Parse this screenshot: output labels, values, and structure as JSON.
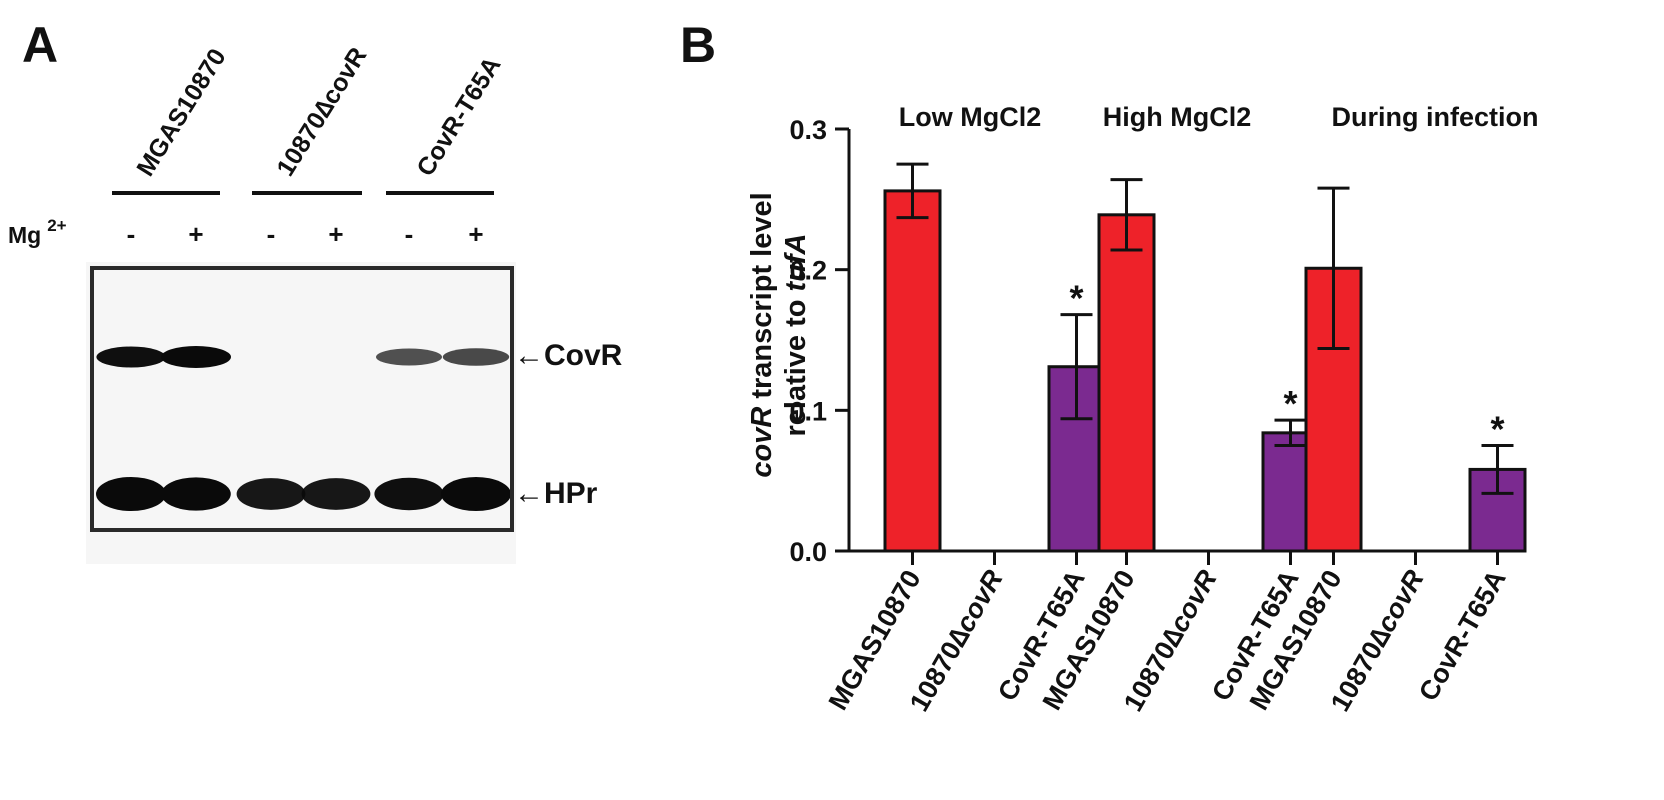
{
  "panel_a": {
    "letter": "A",
    "lanes": [
      {
        "label": "MGAS10870"
      },
      {
        "label": "10870∆covR"
      },
      {
        "label": "CovR-T65A"
      }
    ],
    "mg_label": "Mg",
    "mg_superscript": "2+",
    "signs": [
      "-",
      "+",
      "-",
      "+",
      "-",
      "+"
    ],
    "bands": [
      {
        "label": "←CovR",
        "intensity": [
          0.9,
          1.0,
          0.0,
          0.0,
          0.5,
          0.55
        ]
      },
      {
        "label": "←HPr",
        "intensity": [
          1.0,
          0.95,
          0.85,
          0.85,
          0.9,
          1.0
        ]
      }
    ],
    "colors": {
      "band": "#0a0a0a",
      "blot_background": "#f7f7f7",
      "frame": "#2a2a2a"
    }
  },
  "chart_data": {
    "type": "bar",
    "panel_letter": "B",
    "ylabel": {
      "italic_part": "covR",
      "line1_rest": " transcript level",
      "line2_plain": "relative to ",
      "line2_italic": "tufA"
    },
    "ylim": [
      0.0,
      0.3
    ],
    "yticks": [
      0.0,
      0.1,
      0.2,
      0.3
    ],
    "ytick_labels": [
      "0.0",
      "0.1",
      "0.2",
      "0.3"
    ],
    "grid": false,
    "conditions": [
      {
        "label": "Low MgCl2",
        "bars": [
          {
            "category": "MGAS10870",
            "value": 0.256,
            "err": 0.019,
            "color": "#ee2229",
            "sig": ""
          },
          {
            "category": "10870∆covR",
            "value": 0,
            "err": 0,
            "color": "",
            "sig": ""
          },
          {
            "category": "CovR-T65A",
            "value": 0.131,
            "err": 0.037,
            "color": "#7b2a90",
            "sig": "*"
          }
        ]
      },
      {
        "label": "High MgCl2",
        "bars": [
          {
            "category": "MGAS10870",
            "value": 0.239,
            "err": 0.025,
            "color": "#ee2229",
            "sig": ""
          },
          {
            "category": "10870∆covR",
            "value": 0,
            "err": 0,
            "color": "",
            "sig": ""
          },
          {
            "category": "CovR-T65A",
            "value": 0.084,
            "err": 0.009,
            "color": "#7b2a90",
            "sig": "*"
          }
        ]
      },
      {
        "label": "During infection",
        "bars": [
          {
            "category": "MGAS10870",
            "value": 0.201,
            "err": 0.057,
            "color": "#ee2229",
            "sig": ""
          },
          {
            "category": "10870∆covR",
            "value": 0,
            "err": 0,
            "color": "",
            "sig": ""
          },
          {
            "category": "CovR-T65A",
            "value": 0.058,
            "err": 0.017,
            "color": "#7b2a90",
            "sig": "*"
          }
        ]
      }
    ],
    "category_label_parts": {
      "MGAS10870": [
        [
          "MGAS10870",
          false
        ]
      ],
      "10870∆covR": [
        [
          "10870∆",
          false
        ],
        [
          "covR",
          true
        ]
      ],
      "CovR-T65A": [
        [
          "CovR-T65A",
          false
        ]
      ]
    }
  }
}
